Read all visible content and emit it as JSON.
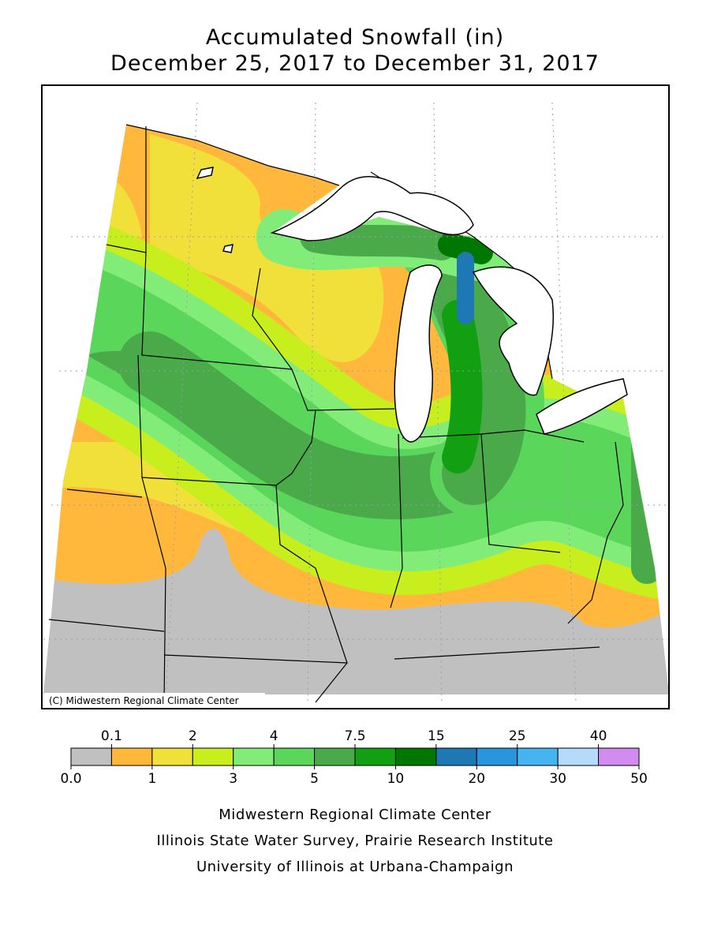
{
  "title": [
    "Accumulated Snowfall (in)",
    "December 25, 2017 to December 31, 2017"
  ],
  "copyright": "(C) Midwestern Regional Climate Center",
  "legend": {
    "breaks": [
      {
        "value": 0,
        "label": "0.0"
      },
      0.1,
      1,
      2,
      3,
      4,
      5,
      7.5,
      10,
      15,
      20,
      25,
      30,
      40,
      50
    ],
    "colors": [
      "#c0c0c0",
      "#ffb83c",
      "#f2e03a",
      "#c8ee1e",
      "#82ec78",
      "#5ad65a",
      "#4aaa4a",
      "#12a012",
      "#007800",
      "#1e78b4",
      "#2896dc",
      "#46b4f0",
      "#b4dcfa",
      "#d28cf0"
    ]
  },
  "credits": [
    "Midwestern Regional Climate Center",
    "Illinois State Water Survey, Prairie Research Institute",
    "University of Illinois at Urbana-Champaign"
  ]
}
